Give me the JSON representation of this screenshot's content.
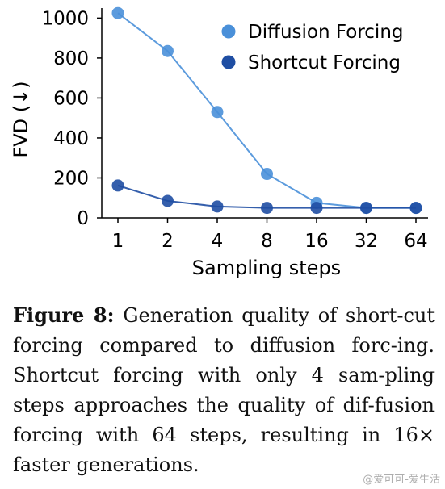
{
  "chart_data": {
    "type": "line",
    "title": "",
    "xlabel": "Sampling steps",
    "ylabel": "FVD (↓)",
    "x": [
      "1",
      "2",
      "4",
      "8",
      "16",
      "32",
      "64"
    ],
    "ylim": [
      0,
      1050
    ],
    "yticks": [
      0,
      200,
      400,
      600,
      800,
      1000
    ],
    "grid": false,
    "legend_position": "top-right",
    "series": [
      {
        "name": "Diffusion Forcing",
        "color": "#4a90d9",
        "values": [
          1025,
          835,
          530,
          220,
          75,
          50,
          50
        ]
      },
      {
        "name": "Shortcut Forcing",
        "color": "#1f4ea3",
        "values": [
          162,
          85,
          57,
          50,
          50,
          50,
          50
        ]
      }
    ]
  },
  "caption": {
    "label": "Figure 8:",
    "text": " Generation quality of short-cut forcing compared to diffusion forc-ing. Shortcut forcing with only 4 sam-pling steps approaches the quality of dif-fusion forcing with 64 steps, resulting in 16× faster generations."
  },
  "watermark": "@爱可可-爱生活"
}
